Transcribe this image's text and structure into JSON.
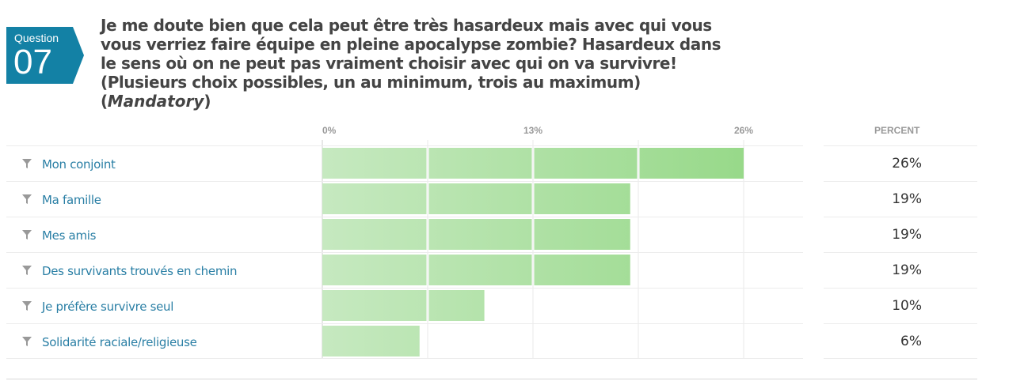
{
  "question": {
    "label": "Question",
    "number": "07",
    "text": "Je me doute bien que cela peut être très hasardeux mais avec qui vous vous verriez faire équipe en pleine apocalypse zombie? Hasardeux dans le sens où on ne peut pas vraiment choisir avec qui on va survivre! (Plusieurs choix possibles, un au minimum, trois au maximum) (",
    "mandatory": "Mandatory",
    "close_paren": ")"
  },
  "colors": {
    "badge": "#1381a5",
    "label": "#2a7fa5",
    "bar_light": "#c6e9c0",
    "bar_dark": "#98d98a"
  },
  "icons": {
    "filter": "filter-icon"
  },
  "percent_header": "PERCENT",
  "chart_data": {
    "type": "bar",
    "orientation": "horizontal",
    "ticks": [
      "0%",
      "13%",
      "26%"
    ],
    "categories": [
      "Mon conjoint",
      "Ma famille",
      "Mes amis",
      "Des survivants trouvés en chemin",
      "Je préfère survivre seul",
      "Solidarité raciale/religieuse"
    ],
    "values": [
      26,
      19,
      19,
      19,
      10,
      6
    ],
    "percent_labels": [
      "26%",
      "19%",
      "19%",
      "19%",
      "10%",
      "6%"
    ],
    "xlim": [
      0,
      26
    ]
  }
}
